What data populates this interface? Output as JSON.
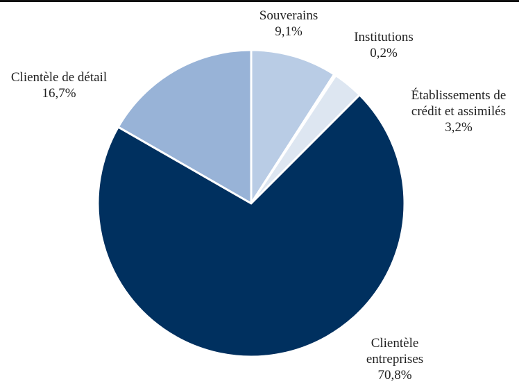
{
  "chart_data": {
    "type": "pie",
    "title": "",
    "slices": [
      {
        "label": "Souverains",
        "label_lines": [
          "Souverains"
        ],
        "value": 9.1,
        "value_text": "9,1%",
        "color": "#b9cce5"
      },
      {
        "label": "Institutions",
        "label_lines": [
          "Institutions"
        ],
        "value": 0.2,
        "value_text": "0,2%",
        "color": "#dde6f1"
      },
      {
        "label": "Établissements de crédit et assimilés",
        "label_lines": [
          "Établissements de",
          "crédit et assimilés"
        ],
        "value": 3.2,
        "value_text": "3,2%",
        "color": "#dde6f1"
      },
      {
        "label": "Clientèle entreprises",
        "label_lines": [
          "Clientèle",
          "entreprises"
        ],
        "value": 70.8,
        "value_text": "70,8%",
        "color": "#00305f"
      },
      {
        "label": "Clientèle de détail",
        "label_lines": [
          "Clientèle de détail"
        ],
        "value": 16.7,
        "value_text": "16,7%",
        "color": "#98b3d7"
      }
    ],
    "start_angle_deg": 0,
    "direction": "clockwise",
    "legend": "none"
  }
}
